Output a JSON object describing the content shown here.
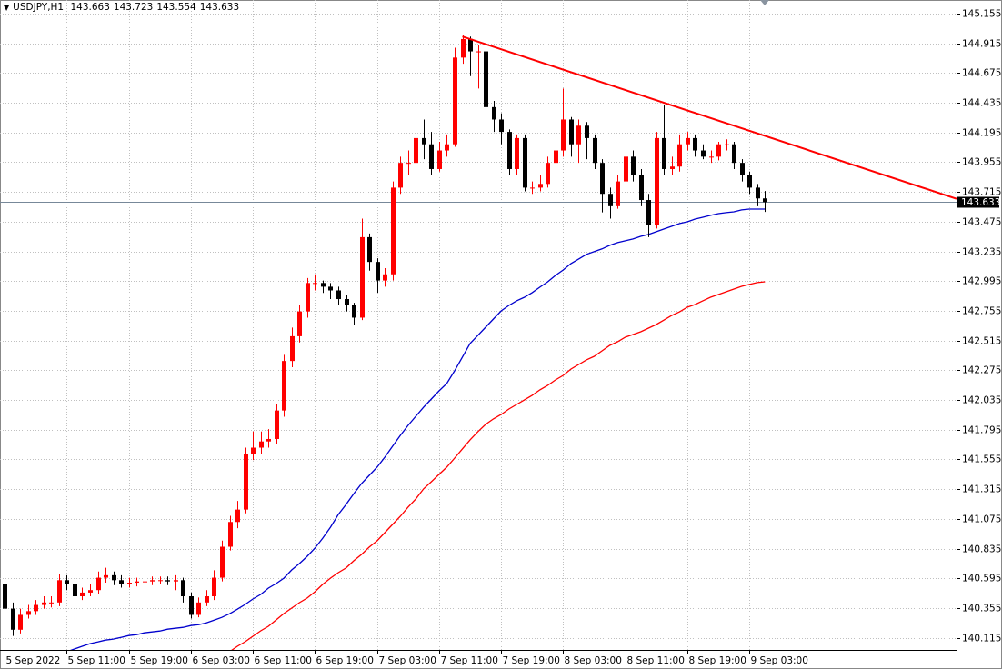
{
  "chart_data": {
    "type": "candlestick",
    "title": "USDJPY,H1",
    "up_color": "#ff0000",
    "down_color": "#000000",
    "grid": true,
    "xlim": [
      -0.6,
      122.7
    ],
    "ylim": [
      140.017,
      145.265
    ],
    "yticks": [
      145.155,
      144.915,
      144.675,
      144.435,
      144.195,
      143.955,
      143.715,
      143.475,
      143.235,
      142.995,
      142.755,
      142.515,
      142.275,
      142.035,
      141.795,
      141.555,
      141.315,
      141.075,
      140.835,
      140.595,
      140.355,
      140.115
    ],
    "xticks": [
      {
        "value": 0,
        "label": "5 Sep 2022"
      },
      {
        "value": 8,
        "label": "5 Sep 11:00"
      },
      {
        "value": 16,
        "label": "5 Sep 19:00"
      },
      {
        "value": 24,
        "label": "6 Sep 03:00"
      },
      {
        "value": 32,
        "label": "6 Sep 11:00"
      },
      {
        "value": 40,
        "label": "6 Sep 19:00"
      },
      {
        "value": 48,
        "label": "7 Sep 03:00"
      },
      {
        "value": 56,
        "label": "7 Sep 11:00"
      },
      {
        "value": 64,
        "label": "7 Sep 19:00"
      },
      {
        "value": 72,
        "label": "8 Sep 03:00"
      },
      {
        "value": 80,
        "label": "8 Sep 11:00"
      },
      {
        "value": 88,
        "label": "8 Sep 19:00"
      },
      {
        "value": 96,
        "label": "9 Sep 03:00"
      }
    ],
    "open": [
      140.55,
      140.35,
      140.18,
      140.3,
      140.33,
      140.38,
      140.4,
      140.4,
      140.58,
      140.55,
      140.45,
      140.48,
      140.5,
      140.6,
      140.62,
      140.58,
      140.55,
      140.56,
      140.57,
      140.57,
      140.58,
      140.58,
      140.57,
      140.58,
      140.45,
      140.3,
      140.4,
      140.45,
      140.6,
      140.85,
      141.05,
      141.15,
      141.6,
      141.65,
      141.7,
      141.72,
      141.95,
      142.35,
      142.55,
      142.75,
      142.98,
      142.98,
      142.95,
      142.92,
      142.85,
      142.8,
      142.7,
      143.35,
      143.15,
      143.0,
      143.05,
      143.75,
      143.95,
      143.95,
      144.15,
      144.1,
      143.9,
      144.05,
      144.1,
      144.8,
      144.95,
      144.85,
      144.85,
      144.4,
      144.3,
      144.2,
      143.9,
      144.15,
      143.75,
      143.75,
      143.78,
      143.95,
      144.05,
      144.3,
      144.1,
      144.25,
      144.15,
      143.95,
      143.7,
      143.6,
      143.8,
      144.0,
      143.85,
      143.65,
      143.45,
      144.15,
      143.9,
      143.92,
      144.1,
      144.15,
      144.05,
      144.0,
      144.0,
      144.1,
      144.1,
      143.95,
      143.85,
      143.75,
      143.663
    ],
    "high": [
      140.62,
      140.4,
      140.35,
      140.38,
      140.42,
      140.45,
      140.45,
      140.63,
      140.62,
      140.58,
      140.52,
      140.55,
      140.65,
      140.68,
      140.65,
      140.62,
      140.6,
      140.6,
      140.6,
      140.61,
      140.61,
      140.61,
      140.62,
      140.6,
      140.48,
      140.44,
      140.5,
      140.66,
      140.9,
      141.1,
      141.22,
      141.65,
      141.78,
      141.78,
      141.8,
      142.0,
      142.4,
      142.62,
      142.8,
      143.02,
      143.05,
      143.0,
      142.98,
      142.95,
      142.88,
      142.82,
      143.5,
      143.38,
      143.18,
      143.1,
      143.8,
      144.0,
      144.05,
      144.35,
      144.3,
      144.2,
      144.12,
      144.18,
      144.88,
      144.98,
      144.97,
      144.9,
      144.88,
      144.45,
      144.35,
      144.22,
      144.18,
      144.18,
      143.8,
      143.85,
      144.0,
      144.12,
      144.55,
      144.32,
      144.3,
      144.28,
      144.18,
      143.98,
      143.75,
      143.85,
      144.12,
      144.05,
      143.9,
      143.7,
      144.2,
      144.42,
      144.0,
      144.18,
      144.2,
      144.18,
      144.1,
      144.05,
      144.12,
      144.14,
      144.12,
      143.98,
      143.88,
      143.78,
      143.723
    ],
    "low": [
      140.3,
      140.13,
      140.15,
      140.27,
      140.3,
      140.35,
      140.36,
      140.37,
      140.5,
      140.42,
      140.42,
      140.45,
      140.47,
      140.56,
      140.54,
      140.52,
      140.52,
      140.53,
      140.54,
      140.54,
      140.55,
      140.54,
      140.5,
      140.4,
      140.27,
      140.28,
      140.37,
      140.42,
      140.57,
      140.82,
      141.0,
      141.12,
      141.55,
      141.6,
      141.65,
      141.68,
      141.9,
      142.3,
      142.5,
      142.7,
      142.92,
      142.9,
      142.85,
      142.8,
      142.75,
      142.64,
      142.68,
      143.08,
      142.9,
      142.95,
      143.0,
      143.7,
      143.85,
      143.9,
      143.98,
      143.85,
      143.88,
      144.0,
      144.08,
      144.75,
      144.65,
      144.55,
      144.35,
      144.2,
      144.1,
      143.85,
      143.85,
      143.72,
      143.7,
      143.72,
      143.75,
      143.9,
      144.0,
      144.0,
      143.95,
      143.98,
      143.9,
      143.55,
      143.5,
      143.58,
      143.75,
      143.8,
      143.6,
      143.35,
      143.42,
      143.85,
      143.85,
      143.88,
      144.05,
      144.0,
      143.98,
      143.95,
      143.97,
      144.05,
      143.9,
      143.8,
      143.7,
      143.6,
      143.554
    ],
    "close": [
      140.35,
      140.18,
      140.3,
      140.33,
      140.38,
      140.4,
      140.4,
      140.58,
      140.55,
      140.45,
      140.48,
      140.5,
      140.6,
      140.62,
      140.58,
      140.55,
      140.56,
      140.57,
      140.57,
      140.58,
      140.58,
      140.57,
      140.58,
      140.45,
      140.3,
      140.4,
      140.45,
      140.6,
      140.85,
      141.05,
      141.15,
      141.6,
      141.65,
      141.7,
      141.72,
      141.95,
      142.35,
      142.55,
      142.75,
      142.98,
      142.98,
      142.95,
      142.92,
      142.85,
      142.8,
      142.7,
      143.35,
      143.15,
      143.0,
      143.05,
      143.75,
      143.95,
      143.95,
      144.15,
      144.1,
      143.9,
      144.05,
      144.1,
      144.8,
      144.95,
      144.85,
      144.85,
      144.4,
      144.3,
      144.2,
      143.9,
      144.15,
      143.75,
      143.75,
      143.78,
      143.95,
      144.05,
      144.3,
      144.1,
      144.25,
      144.15,
      143.95,
      143.7,
      143.6,
      143.8,
      144.0,
      143.85,
      143.65,
      143.45,
      144.15,
      143.9,
      143.92,
      144.1,
      144.15,
      144.05,
      144.0,
      144.0,
      144.1,
      144.1,
      143.95,
      143.85,
      143.75,
      143.663,
      143.633
    ],
    "price_line_color": "#778899",
    "moving_averages": [
      {
        "color": "#0000cd",
        "values": [
          null,
          null,
          null,
          null,
          null,
          null,
          null,
          null,
          140.002,
          140.024,
          140.046,
          140.068,
          140.081,
          140.096,
          140.104,
          140.118,
          140.133,
          140.14,
          140.155,
          140.162,
          140.17,
          140.184,
          140.192,
          140.199,
          140.214,
          140.221,
          140.236,
          140.258,
          140.28,
          140.309,
          140.346,
          140.384,
          140.428,
          140.465,
          140.516,
          140.553,
          140.597,
          140.663,
          140.714,
          140.773,
          140.839,
          140.919,
          141.008,
          141.11,
          141.191,
          141.279,
          141.36,
          141.426,
          141.492,
          141.573,
          141.661,
          141.749,
          141.83,
          141.903,
          141.976,
          142.043,
          142.109,
          142.168,
          142.271,
          142.381,
          142.491,
          142.557,
          142.623,
          142.689,
          142.755,
          142.799,
          142.836,
          142.865,
          142.902,
          142.946,
          142.99,
          143.041,
          143.085,
          143.137,
          143.174,
          143.211,
          143.233,
          143.255,
          143.284,
          143.306,
          143.321,
          143.335,
          143.357,
          143.372,
          143.394,
          143.416,
          143.438,
          143.46,
          143.474,
          143.496,
          143.511,
          143.526,
          143.54,
          143.548,
          143.555,
          143.57,
          143.577,
          143.577,
          143.577
        ]
      },
      {
        "color": "#ff0000",
        "values": [
          null,
          null,
          null,
          null,
          null,
          null,
          null,
          null,
          null,
          null,
          null,
          null,
          null,
          null,
          null,
          null,
          null,
          null,
          null,
          null,
          null,
          null,
          null,
          null,
          null,
          null,
          null,
          null,
          null,
          140.002,
          140.046,
          140.083,
          140.127,
          140.171,
          140.208,
          140.259,
          140.311,
          140.355,
          140.399,
          140.436,
          140.487,
          140.546,
          140.597,
          140.641,
          140.678,
          140.737,
          140.788,
          140.847,
          140.898,
          140.964,
          141.03,
          141.096,
          141.17,
          141.236,
          141.317,
          141.375,
          141.434,
          141.493,
          141.566,
          141.64,
          141.713,
          141.779,
          141.838,
          141.882,
          141.918,
          141.962,
          141.999,
          142.036,
          142.073,
          142.117,
          142.153,
          142.197,
          142.234,
          142.285,
          142.322,
          142.359,
          142.388,
          142.432,
          142.476,
          142.505,
          142.542,
          142.564,
          142.586,
          142.615,
          142.645,
          142.681,
          142.718,
          142.747,
          142.784,
          142.806,
          142.836,
          142.865,
          142.887,
          142.909,
          142.931,
          142.953,
          142.968,
          142.983,
          142.99
        ]
      }
    ],
    "trendline": {
      "color": "#ff0000",
      "x": [
        59,
        122.7
      ],
      "y": [
        144.97,
        143.66
      ]
    }
  }
}
